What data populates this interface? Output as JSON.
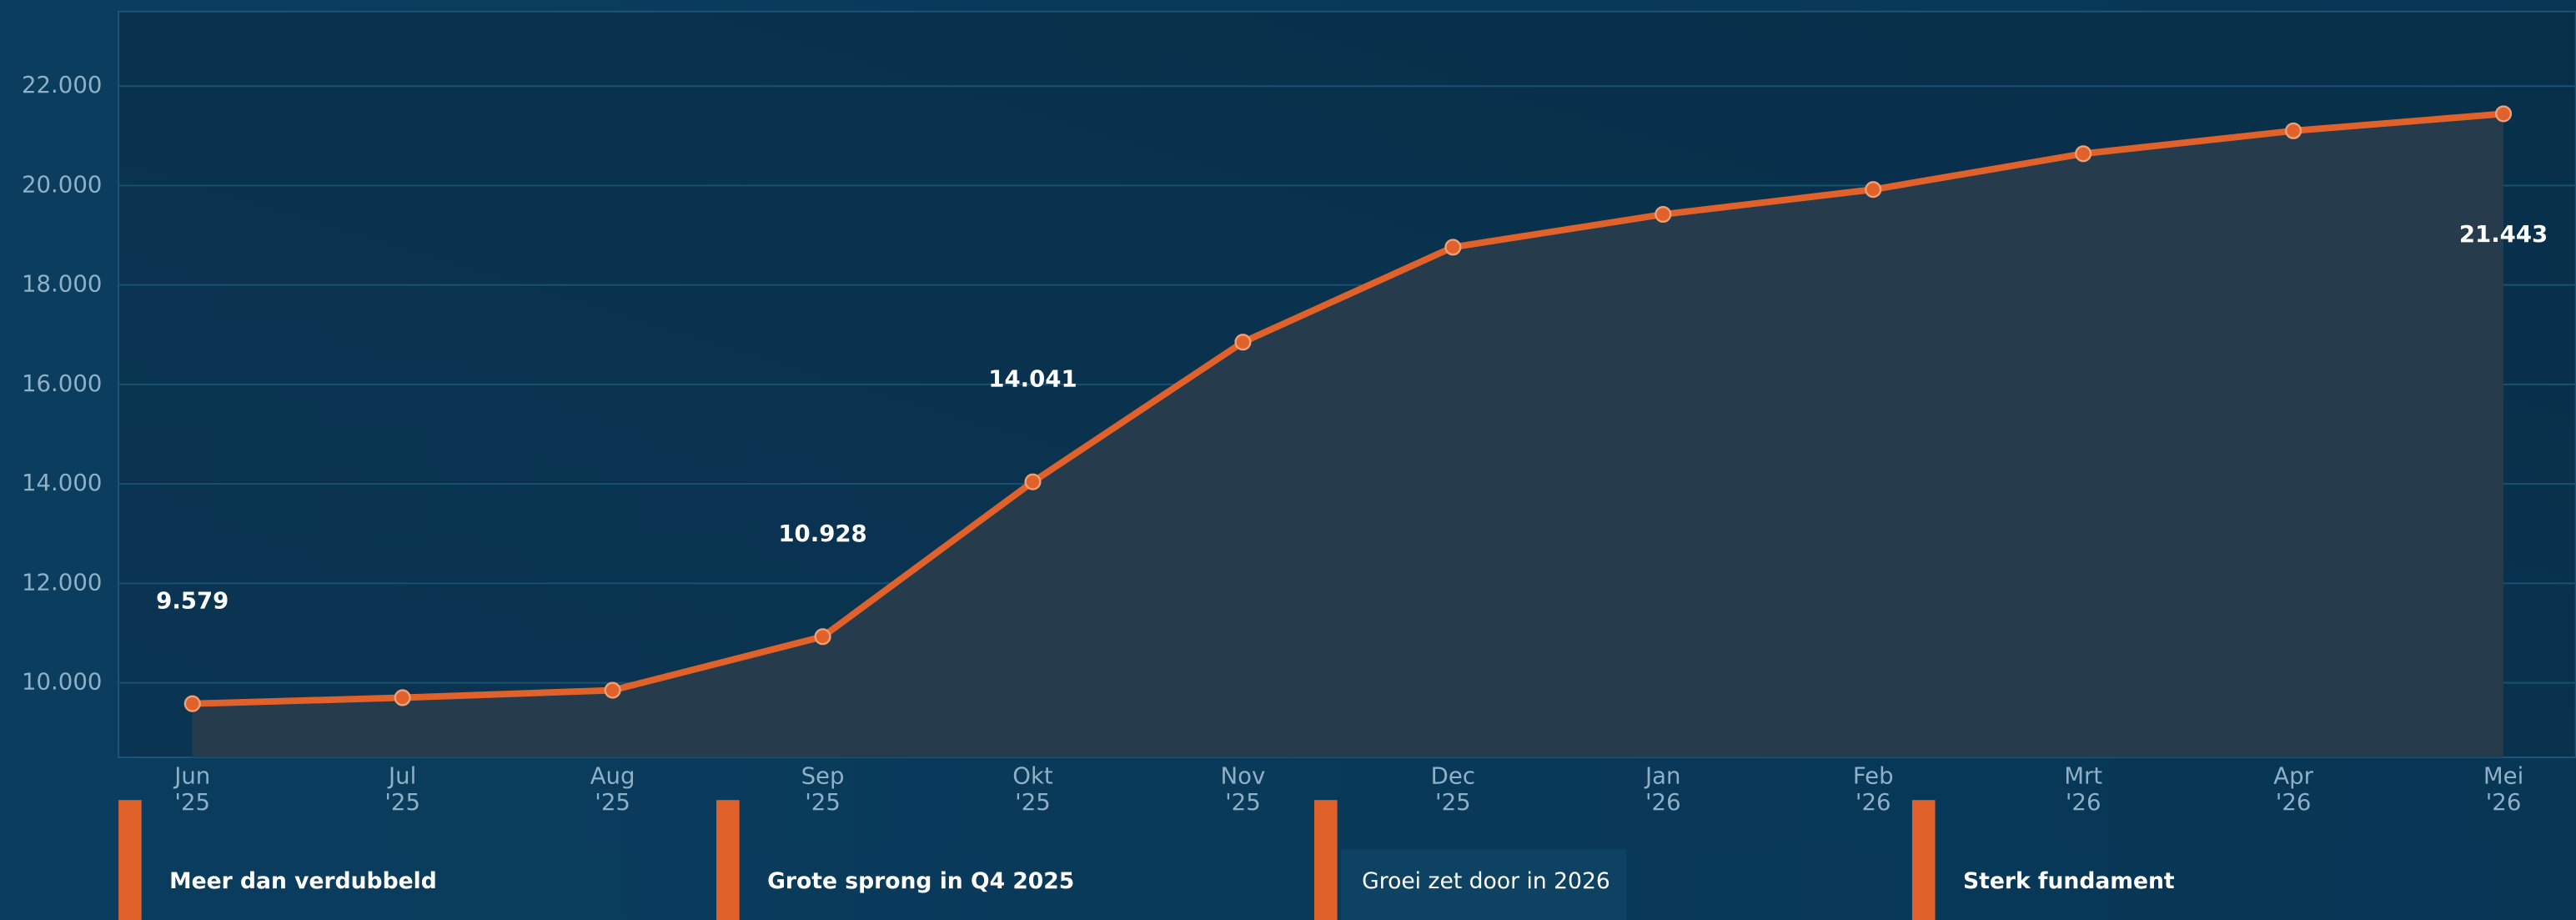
{
  "chart_data": {
    "type": "line",
    "categories": [
      [
        "Jun",
        "'25"
      ],
      [
        "Jul",
        "'25"
      ],
      [
        "Aug",
        "'25"
      ],
      [
        "Sep",
        "'25"
      ],
      [
        "Okt",
        "'25"
      ],
      [
        "Nov",
        "'25"
      ],
      [
        "Dec",
        "'25"
      ],
      [
        "Jan",
        "'26"
      ],
      [
        "Feb",
        "'26"
      ],
      [
        "Mrt",
        "'26"
      ],
      [
        "Apr",
        "'26"
      ],
      [
        "Mei",
        "'26"
      ]
    ],
    "values": [
      9579,
      9700,
      9850,
      10928,
      14041,
      16850,
      18760,
      19420,
      19920,
      20640,
      21100,
      21443
    ],
    "value_labels": [
      "9.579",
      null,
      null,
      "10.928",
      "14.041",
      null,
      null,
      null,
      null,
      null,
      null,
      "21.443"
    ],
    "color": "#e0622a",
    "ylim": [
      8500,
      23500
    ],
    "yticks": [
      {
        "value": 10000,
        "label": "10.000"
      },
      {
        "value": 12000,
        "label": "12.000"
      },
      {
        "value": 14000,
        "label": "14.000"
      },
      {
        "value": 16000,
        "label": "16.000"
      },
      {
        "value": 18000,
        "label": "18.000"
      },
      {
        "value": 20000,
        "label": "20.000"
      },
      {
        "value": 22000,
        "label": "22.000"
      }
    ],
    "grid": true,
    "area": true
  },
  "cards": [
    "Meer dan verdubbeld",
    "Grote sprong in Q4 2025",
    "Groei zet door in 2026",
    "Sterk fundament"
  ]
}
